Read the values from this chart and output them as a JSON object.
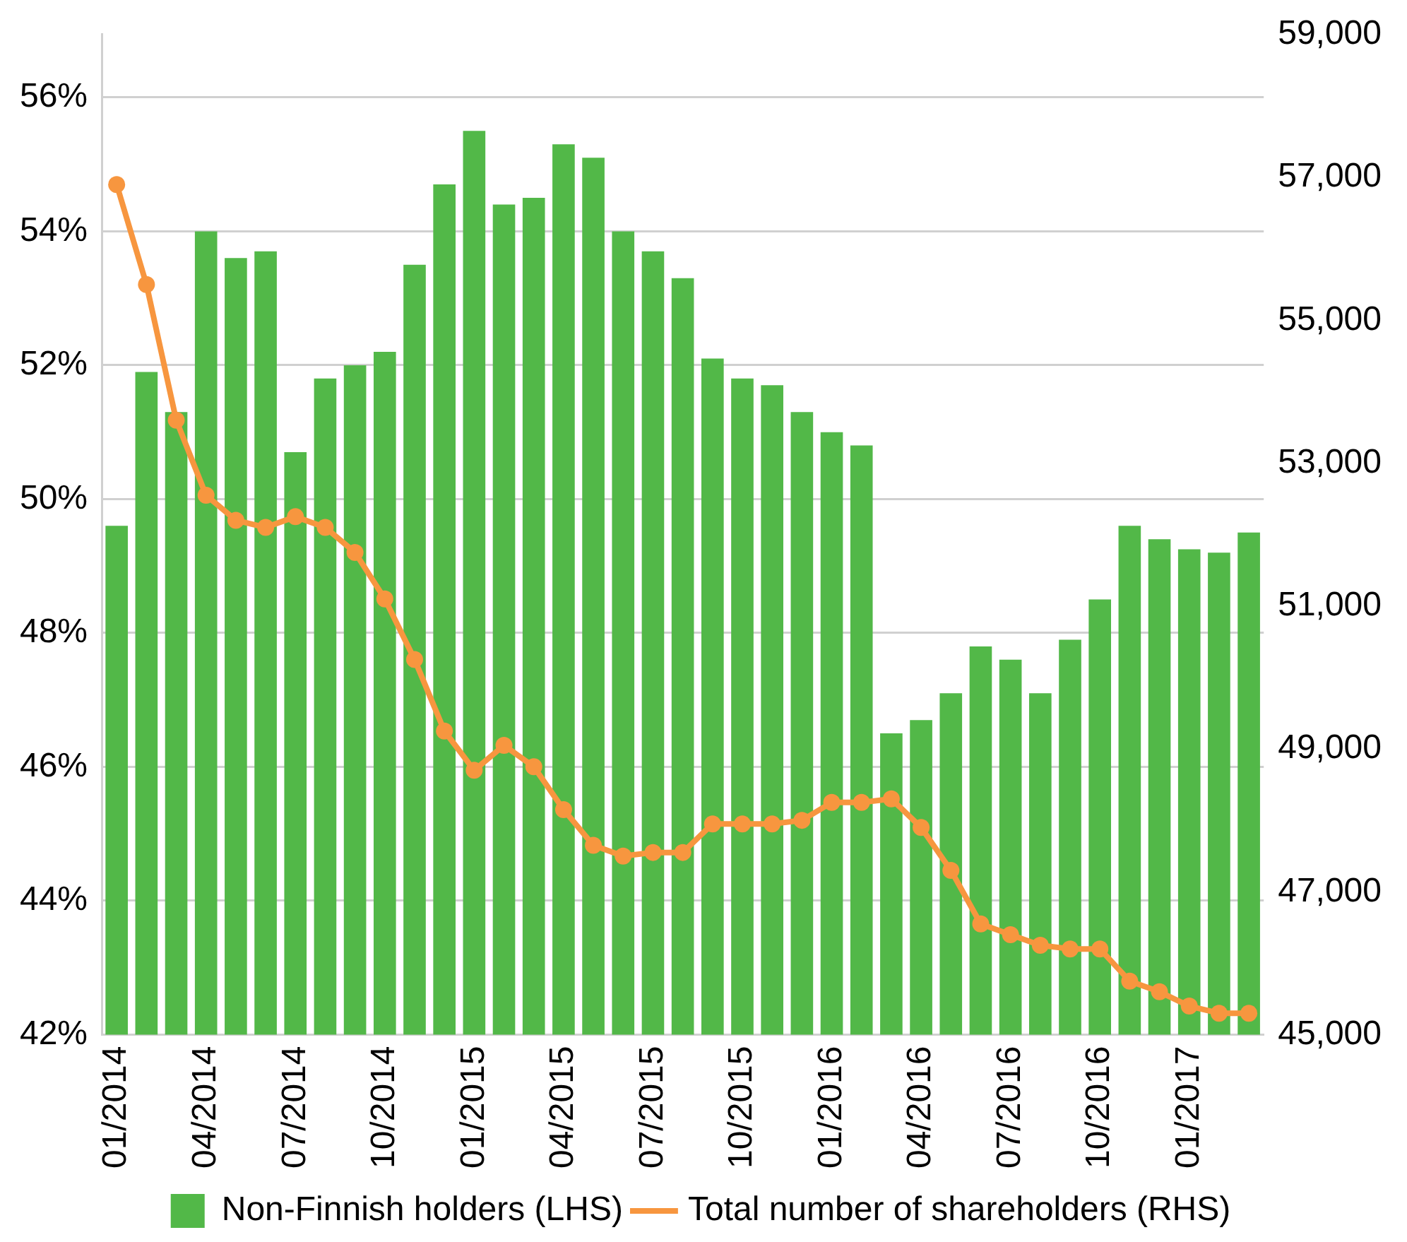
{
  "chart_data": {
    "type": "bar",
    "categories": [
      "01/2014",
      null,
      null,
      "04/2014",
      null,
      null,
      "07/2014",
      null,
      null,
      "10/2014",
      null,
      null,
      "01/2015",
      null,
      null,
      "04/2015",
      null,
      null,
      "07/2015",
      null,
      null,
      "10/2015",
      null,
      null,
      "01/2016",
      null,
      null,
      "04/2016",
      null,
      null,
      "07/2016",
      null,
      null,
      "10/2016",
      null,
      null,
      "01/2017",
      null,
      null
    ],
    "series": [
      {
        "name": "Non-Finnish holders (LHS)",
        "color": "#52b848",
        "values": [
          49.6,
          51.9,
          51.3,
          54.0,
          53.6,
          53.7,
          50.7,
          51.8,
          52.0,
          52.2,
          53.5,
          54.7,
          55.5,
          54.4,
          54.5,
          55.3,
          55.1,
          54.0,
          53.7,
          53.3,
          52.1,
          51.8,
          51.7,
          51.3,
          51.0,
          50.8,
          46.5,
          46.7,
          47.1,
          47.8,
          47.6,
          47.1,
          47.9,
          48.5,
          49.6,
          49.4,
          49.25,
          49.2,
          49.5
        ]
      },
      {
        "name": "Total number of shareholders (RHS)",
        "type": "line",
        "axis": "y2",
        "color": "#f7963f",
        "values": [
          56900,
          55500,
          53600,
          52550,
          52200,
          52100,
          52250,
          52100,
          51750,
          51100,
          50250,
          49250,
          48700,
          49050,
          48750,
          48150,
          47650,
          47500,
          47550,
          47550,
          47950,
          47950,
          47950,
          48000,
          48250,
          48250,
          48300,
          47900,
          47300,
          46550,
          46400,
          46250,
          46200,
          46200,
          45750,
          45600,
          45400,
          45300,
          45300
        ]
      }
    ],
    "ylim": [
      42,
      56.94
    ],
    "yticks": [
      {
        "value": 42,
        "label": "42%"
      },
      {
        "value": 44,
        "label": "44%"
      },
      {
        "value": 46,
        "label": "46%"
      },
      {
        "value": 48,
        "label": "48%"
      },
      {
        "value": 50,
        "label": "50%"
      },
      {
        "value": 52,
        "label": "52%"
      },
      {
        "value": 54,
        "label": "54%"
      },
      {
        "value": 56,
        "label": "56%"
      }
    ],
    "y2lim": [
      45000,
      59000
    ],
    "y2ticks": [
      {
        "value": 45000,
        "label": "45,000"
      },
      {
        "value": 47000,
        "label": "47,000"
      },
      {
        "value": 49000,
        "label": "49,000"
      },
      {
        "value": 51000,
        "label": "51,000"
      },
      {
        "value": 53000,
        "label": "53,000"
      },
      {
        "value": 55000,
        "label": "55,000"
      },
      {
        "value": 57000,
        "label": "57,000"
      },
      {
        "value": 59000,
        "label": "59,000"
      }
    ],
    "grid": "y",
    "legend": "bottom",
    "marker": "circle",
    "line_style": "solid"
  }
}
